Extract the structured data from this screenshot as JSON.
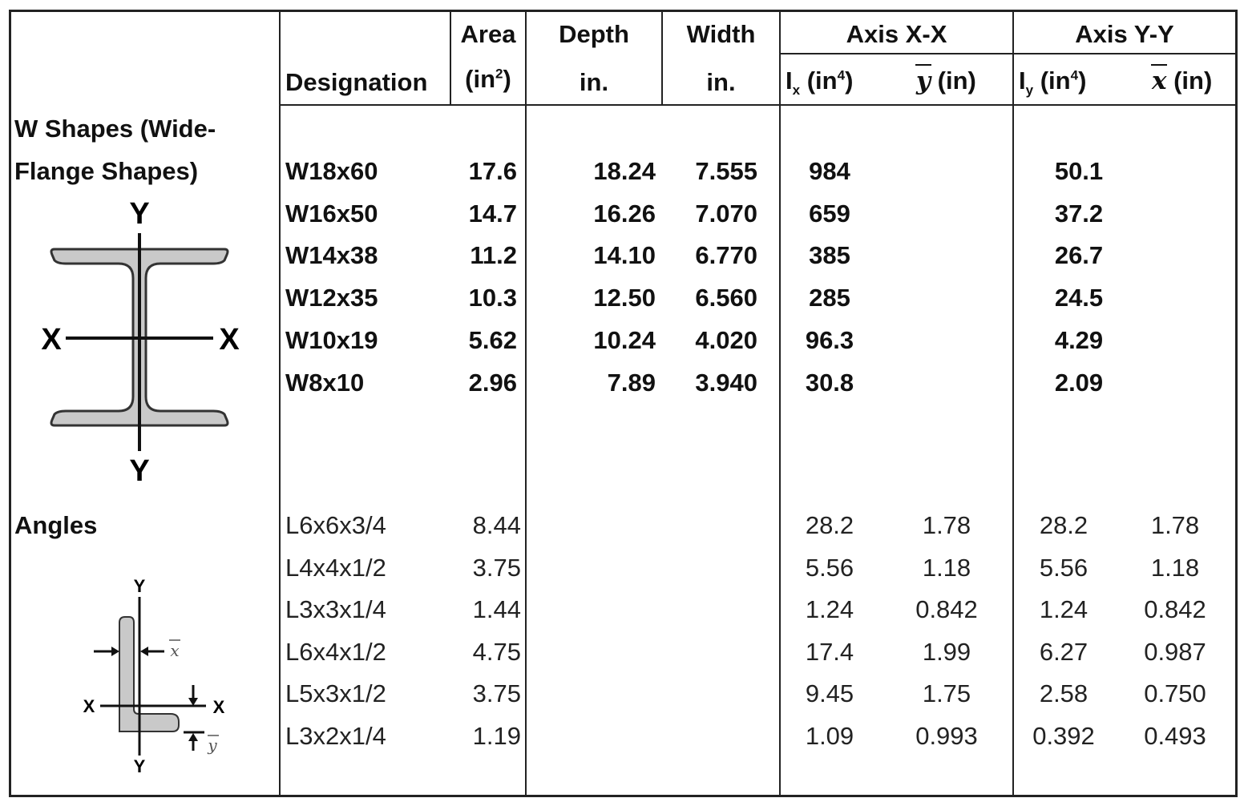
{
  "header": {
    "designation": "Designation",
    "area_line1": "Area",
    "area_unit_base": "(in",
    "area_unit_exp": "2",
    "area_unit_close": ")",
    "depth_line1": "Depth",
    "depth_unit": "in.",
    "width_line1": "Width",
    "width_unit": "in.",
    "axis_xx": "Axis X-X",
    "axis_yy": "Axis Y-Y",
    "ix_base": "I",
    "ix_sub": "x",
    "ix_unit_open": " (in",
    "ix_unit_exp": "4",
    "ix_unit_close": ")",
    "ybar_symbol": "y",
    "ybar_unit": " (in)",
    "iy_base": "I",
    "iy_sub": "y",
    "iy_unit_open": " (in",
    "iy_unit_exp": "4",
    "iy_unit_close": ")",
    "xbar_symbol": "x",
    "xbar_unit": " (in)"
  },
  "w_section": {
    "label_line1": "W Shapes (Wide-",
    "label_line2": "Flange Shapes)",
    "diagram": {
      "top_label": "Y",
      "bottom_label": "Y",
      "left_label": "X",
      "right_label": "X"
    },
    "rows": [
      {
        "designation": "W18x60",
        "area": "17.6",
        "depth": "18.24",
        "width": "7.555",
        "ix": "984",
        "iy": "50.1"
      },
      {
        "designation": "W16x50",
        "area": "14.7",
        "depth": "16.26",
        "width": "7.070",
        "ix": "659",
        "iy": "37.2"
      },
      {
        "designation": "W14x38",
        "area": "11.2",
        "depth": "14.10",
        "width": "6.770",
        "ix": "385",
        "iy": "26.7"
      },
      {
        "designation": "W12x35",
        "area": "10.3",
        "depth": "12.50",
        "width": "6.560",
        "ix": "285",
        "iy": "24.5"
      },
      {
        "designation": "W10x19",
        "area": "5.62",
        "depth": "10.24",
        "width": "4.020",
        "ix": "96.3",
        "iy": "4.29"
      },
      {
        "designation": "W8x10",
        "area": "2.96",
        "depth": "7.89",
        "width": "3.940",
        "ix": "30.8",
        "iy": "2.09"
      }
    ]
  },
  "angles_section": {
    "label": "Angles",
    "diagram": {
      "top_label": "Y",
      "bottom_label": "Y",
      "left_label": "X",
      "right_label": "X",
      "xbar_label": "x",
      "ybar_label": "y"
    },
    "rows": [
      {
        "designation": "L6x6x3/4",
        "area": "8.44",
        "ix": "28.2",
        "ybar": "1.78",
        "iy": "28.2",
        "xbar": "1.78"
      },
      {
        "designation": "L4x4x1/2",
        "area": "3.75",
        "ix": "5.56",
        "ybar": "1.18",
        "iy": "5.56",
        "xbar": "1.18"
      },
      {
        "designation": "L3x3x1/4",
        "area": "1.44",
        "ix": "1.24",
        "ybar": "0.842",
        "iy": "1.24",
        "xbar": "0.842"
      },
      {
        "designation": "L6x4x1/2",
        "area": "4.75",
        "ix": "17.4",
        "ybar": "1.99",
        "iy": "6.27",
        "xbar": "0.987"
      },
      {
        "designation": "L5x3x1/2",
        "area": "3.75",
        "ix": "9.45",
        "ybar": "1.75",
        "iy": "2.58",
        "xbar": "0.750"
      },
      {
        "designation": "L3x2x1/4",
        "area": "1.19",
        "ix": "1.09",
        "ybar": "0.993",
        "iy": "0.392",
        "xbar": "0.493"
      }
    ]
  },
  "colors": {
    "shape_fill": "#c9c9c9",
    "lines": "#222222"
  }
}
